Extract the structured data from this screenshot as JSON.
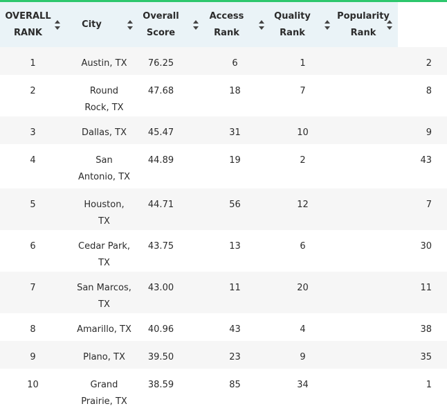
{
  "colors": {
    "accent": "#2dc76d",
    "header_bg": "#eaf3f7",
    "row_alt": "#f6f6f6"
  },
  "headers": [
    {
      "key": "rank",
      "label": "OVERALL RANK",
      "icon": "sort-icon"
    },
    {
      "key": "city",
      "label": "City",
      "icon": "sort-icon"
    },
    {
      "key": "score",
      "label": "Overall Score",
      "icon": "sort-icon"
    },
    {
      "key": "access",
      "label": "Access Rank",
      "icon": "sort-icon"
    },
    {
      "key": "quality",
      "label": "Quality Rank",
      "icon": "sort-icon"
    },
    {
      "key": "popularity",
      "label": "Popularity Rank",
      "icon": "sort-icon"
    }
  ],
  "rows": [
    {
      "rank": "1",
      "city": "Austin, TX",
      "score": "76.25",
      "access": "6",
      "quality": "1",
      "popularity": "2"
    },
    {
      "rank": "2",
      "city": "Round Rock, TX",
      "score": "47.68",
      "access": "18",
      "quality": "7",
      "popularity": "8"
    },
    {
      "rank": "3",
      "city": "Dallas, TX",
      "score": "45.47",
      "access": "31",
      "quality": "10",
      "popularity": "9"
    },
    {
      "rank": "4",
      "city": "San Antonio, TX",
      "score": "44.89",
      "access": "19",
      "quality": "2",
      "popularity": "43"
    },
    {
      "rank": "5",
      "city": "Houston, TX",
      "score": "44.71",
      "access": "56",
      "quality": "12",
      "popularity": "7"
    },
    {
      "rank": "6",
      "city": "Cedar Park, TX",
      "score": "43.75",
      "access": "13",
      "quality": "6",
      "popularity": "30"
    },
    {
      "rank": "7",
      "city": "San Marcos, TX",
      "score": "43.00",
      "access": "11",
      "quality": "20",
      "popularity": "11"
    },
    {
      "rank": "8",
      "city": "Amarillo, TX",
      "score": "40.96",
      "access": "43",
      "quality": "4",
      "popularity": "38"
    },
    {
      "rank": "9",
      "city": "Plano, TX",
      "score": "39.50",
      "access": "23",
      "quality": "9",
      "popularity": "35"
    },
    {
      "rank": "10",
      "city": "Grand Prairie, TX",
      "score": "38.59",
      "access": "85",
      "quality": "34",
      "popularity": "1"
    }
  ]
}
